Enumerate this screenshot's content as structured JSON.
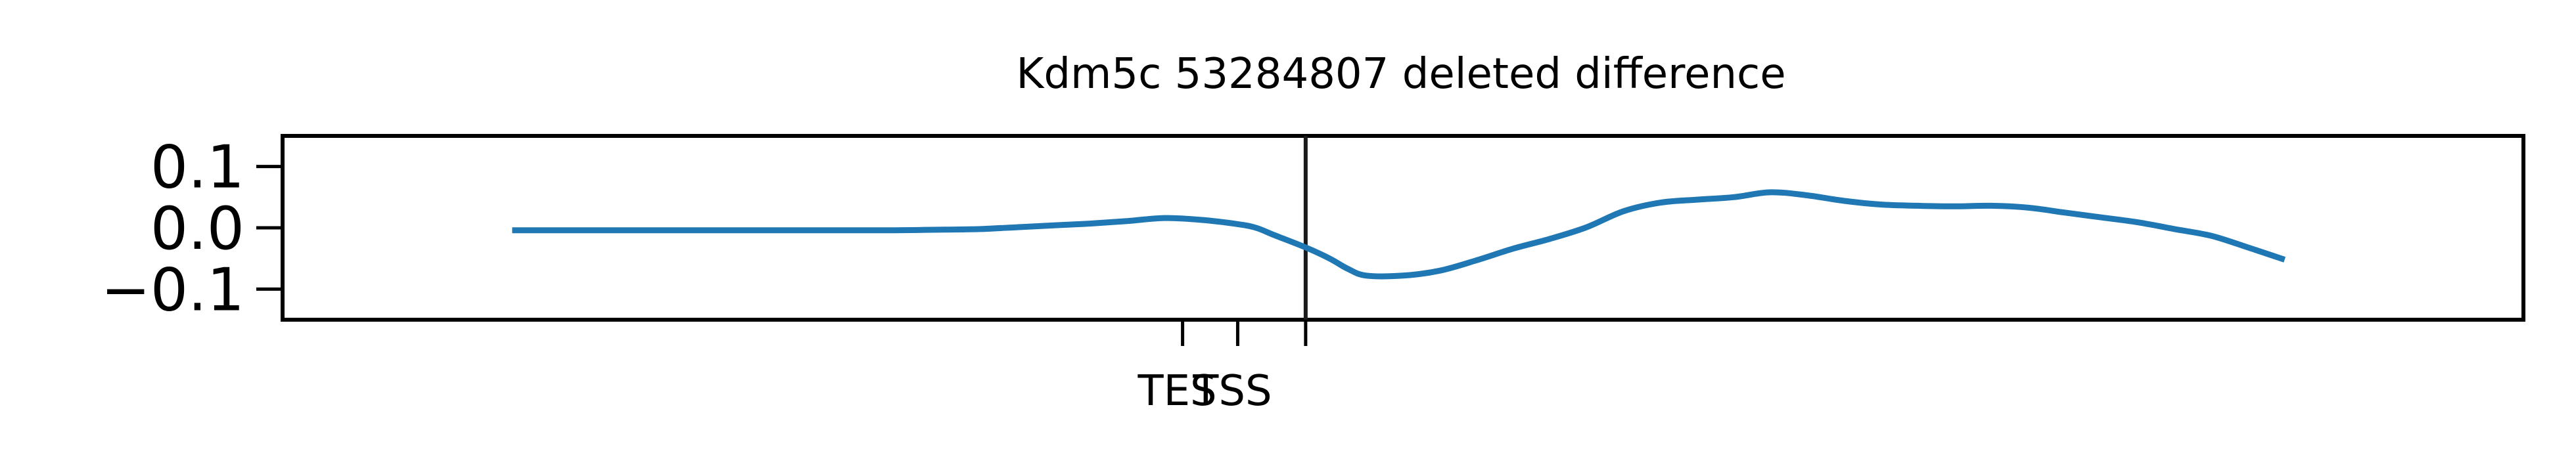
{
  "chart_data": {
    "type": "line",
    "title": "Kdm5c 53284807 deleted difference",
    "xlabel": "",
    "ylabel": "",
    "xlim": [
      -3.8,
      8.4
    ],
    "ylim": [
      -0.15,
      0.15
    ],
    "yticks": [
      {
        "value": 0.1,
        "label": "0.1"
      },
      {
        "value": 0.0,
        "label": "0.0"
      },
      {
        "value": -0.1,
        "label": "−0.1"
      }
    ],
    "xticks": [
      {
        "value": 1.1,
        "label": "TES"
      },
      {
        "value": 1.4,
        "label": "TSS"
      },
      {
        "value": 1.77,
        "label": ""
      }
    ],
    "vlines": [
      {
        "x": 1.77,
        "color": "#1a1a1a"
      }
    ],
    "grid": false,
    "legend": "none",
    "series": [
      {
        "color": "#1f77b4",
        "x": [
          -2.55,
          -2.0,
          -1.5,
          -1.0,
          -0.5,
          -0.2,
          0.0,
          0.2,
          0.4,
          0.6,
          0.8,
          1.0,
          1.2,
          1.4,
          1.5,
          1.6,
          1.77,
          1.9,
          2.0,
          2.1,
          2.3,
          2.5,
          2.7,
          2.9,
          3.1,
          3.3,
          3.5,
          3.7,
          3.9,
          4.1,
          4.3,
          4.5,
          4.7,
          4.9,
          5.1,
          5.3,
          5.5,
          5.7,
          5.9,
          6.1,
          6.3,
          6.5,
          6.7,
          6.9,
          7.1
        ],
        "y": [
          -0.004,
          -0.004,
          -0.004,
          -0.004,
          -0.004,
          -0.003,
          -0.002,
          0.001,
          0.004,
          0.007,
          0.011,
          0.016,
          0.013,
          0.006,
          0.0,
          -0.012,
          -0.032,
          -0.05,
          -0.067,
          -0.078,
          -0.078,
          -0.07,
          -0.053,
          -0.034,
          -0.018,
          0.001,
          0.027,
          0.041,
          0.046,
          0.05,
          0.058,
          0.053,
          0.044,
          0.038,
          0.036,
          0.035,
          0.036,
          0.033,
          0.025,
          0.017,
          0.009,
          -0.002,
          -0.013,
          -0.032,
          -0.052
        ]
      }
    ]
  }
}
